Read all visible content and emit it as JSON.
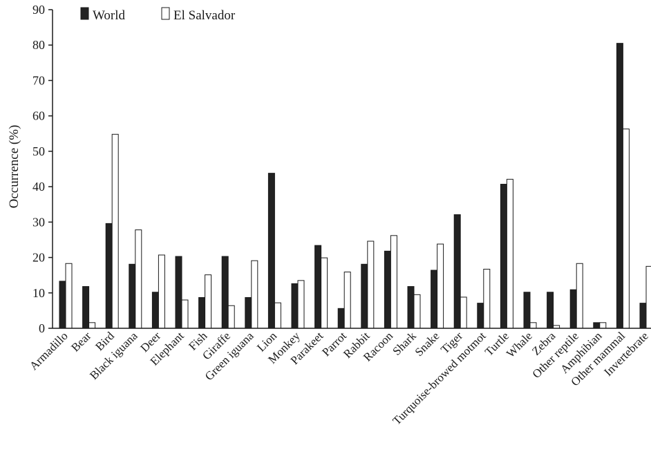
{
  "chart_data": {
    "type": "bar",
    "title": "",
    "xlabel": "",
    "ylabel": "Occurrence (%)",
    "ylim": [
      0,
      90
    ],
    "yticks": [
      "0",
      "10",
      "20",
      "30",
      "40",
      "50",
      "60",
      "70",
      "80",
      "90"
    ],
    "grid": false,
    "legend_position": "top-left",
    "categories": [
      "Armadillo",
      "Bear",
      "Bird",
      "Black iguana",
      "Deer",
      "Elephant",
      "Fish",
      "Giraffe",
      "Green iguana",
      "Lion",
      "Monkey",
      "Parakeet",
      "Parrot",
      "Rabbit",
      "Racoon",
      "Shark",
      "Snake",
      "Tiger",
      "Turquoise-browed motmot",
      "Turtle",
      "Whale",
      "Zebra",
      "Other reptile",
      "Amphibian",
      "Other mammal",
      "Invertebrate"
    ],
    "series": [
      {
        "name": "World",
        "color": "#222222",
        "values": [
          13.3,
          11.8,
          29.6,
          18.1,
          10.2,
          20.3,
          8.7,
          20.3,
          8.7,
          43.8,
          12.6,
          23.4,
          5.6,
          18.1,
          21.8,
          11.8,
          16.4,
          32.1,
          7.1,
          40.7,
          10.2,
          10.2,
          10.9,
          1.6,
          80.5,
          7.1
        ]
      },
      {
        "name": "El Salvador",
        "color": "#ffffff",
        "values": [
          18.3,
          1.6,
          54.8,
          27.8,
          20.7,
          8.0,
          15.1,
          6.4,
          19.1,
          7.2,
          13.5,
          19.9,
          15.9,
          24.6,
          26.2,
          9.5,
          23.8,
          8.8,
          16.7,
          42.1,
          1.6,
          0.8,
          18.3,
          1.6,
          56.3,
          17.5
        ]
      }
    ]
  }
}
